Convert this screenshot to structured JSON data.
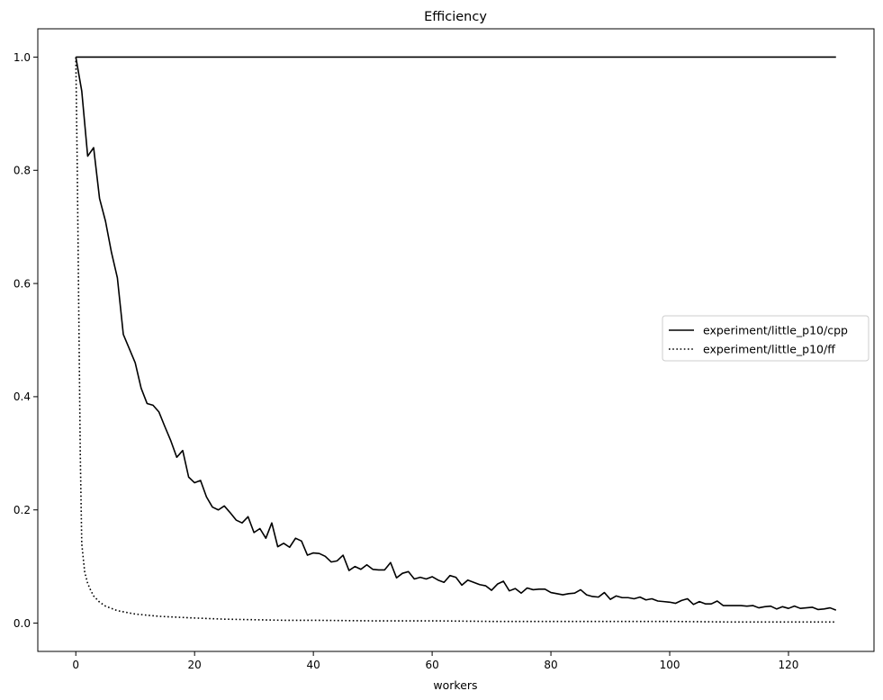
{
  "chart_data": {
    "type": "line",
    "title": "Efficiency",
    "xlabel": "workers",
    "ylabel": "",
    "xlim": [
      -6.4,
      134.4
    ],
    "ylim": [
      -0.05,
      1.05
    ],
    "xticks": [
      0,
      20,
      40,
      60,
      80,
      100,
      120
    ],
    "yticks": [
      0.0,
      0.2,
      0.4,
      0.6,
      0.8,
      1.0
    ],
    "xtick_labels": [
      "0",
      "20",
      "40",
      "60",
      "80",
      "100",
      "120"
    ],
    "ytick_labels": [
      "0.0",
      "0.2",
      "0.4",
      "0.6",
      "0.8",
      "1.0"
    ],
    "grid": false,
    "legend_position": "center-right",
    "line_color": "#000000",
    "series": [
      {
        "name": "experiment/little_p10/cpp",
        "style": "solid",
        "x": [
          0,
          1,
          2,
          3,
          4,
          5,
          6,
          7,
          8,
          9,
          10,
          11,
          12,
          13,
          14,
          15,
          16,
          17,
          18,
          19,
          20,
          21,
          22,
          23,
          24,
          25,
          26,
          27,
          28,
          29,
          30,
          31,
          32,
          33,
          34,
          35,
          36,
          37,
          38,
          39,
          40,
          41,
          42,
          43,
          44,
          45,
          46,
          47,
          48,
          49,
          50,
          51,
          52,
          53,
          54,
          55,
          56,
          57,
          58,
          59,
          60,
          61,
          62,
          63,
          64,
          65,
          66,
          67,
          68,
          69,
          70,
          71,
          72,
          73,
          74,
          75,
          76,
          77,
          78,
          79,
          80,
          81,
          82,
          83,
          84,
          85,
          86,
          87,
          88,
          89,
          90,
          91,
          92,
          93,
          94,
          95,
          96,
          97,
          98,
          99,
          100,
          101,
          102,
          103,
          104,
          105,
          106,
          107,
          108,
          109,
          110,
          111,
          112,
          113,
          114,
          115,
          116,
          117,
          118,
          119,
          120,
          121,
          122,
          123,
          124,
          125,
          126,
          127,
          128
        ],
        "values": [
          1.0,
          0.94,
          0.825,
          0.84,
          0.75,
          0.71,
          0.655,
          0.61,
          0.51,
          0.485,
          0.46,
          0.415,
          0.388,
          0.385,
          0.373,
          0.347,
          0.322,
          0.293,
          0.305,
          0.258,
          0.248,
          0.252,
          0.223,
          0.205,
          0.2,
          0.207,
          0.195,
          0.182,
          0.177,
          0.188,
          0.16,
          0.167,
          0.15,
          0.177,
          0.135,
          0.141,
          0.134,
          0.15,
          0.145,
          0.12,
          0.124,
          0.123,
          0.118,
          0.108,
          0.11,
          0.12,
          0.093,
          0.1,
          0.095,
          0.103,
          0.095,
          0.094,
          0.094,
          0.107,
          0.08,
          0.088,
          0.091,
          0.078,
          0.081,
          0.078,
          0.082,
          0.076,
          0.072,
          0.084,
          0.081,
          0.067,
          0.076,
          0.072,
          0.068,
          0.066,
          0.058,
          0.069,
          0.074,
          0.057,
          0.061,
          0.053,
          0.062,
          0.059,
          0.06,
          0.06,
          0.054,
          0.052,
          0.05,
          0.052,
          0.053,
          0.059,
          0.05,
          0.047,
          0.046,
          0.054,
          0.042,
          0.048,
          0.045,
          0.045,
          0.043,
          0.046,
          0.041,
          0.043,
          0.039,
          0.038,
          0.037,
          0.035,
          0.04,
          0.043,
          0.033,
          0.038,
          0.034,
          0.034,
          0.039,
          0.031,
          0.031,
          0.031,
          0.031,
          0.03,
          0.031,
          0.027,
          0.029,
          0.03,
          0.025,
          0.029,
          0.026,
          0.03,
          0.026,
          0.027,
          0.028,
          0.024,
          0.025,
          0.027,
          0.023
        ]
      },
      {
        "name": "experiment/little_p10/ff",
        "style": "dotted",
        "x": [
          0,
          0.25,
          0.5,
          0.75,
          1,
          1.5,
          2,
          2.5,
          3,
          4,
          5,
          6,
          7,
          8,
          9,
          10,
          12,
          14,
          16,
          18,
          20,
          25,
          30,
          35,
          40,
          50,
          60,
          70,
          80,
          90,
          100,
          110,
          120,
          128
        ],
        "values": [
          1.0,
          0.8,
          0.55,
          0.3,
          0.14,
          0.09,
          0.07,
          0.058,
          0.048,
          0.037,
          0.03,
          0.026,
          0.022,
          0.02,
          0.018,
          0.016,
          0.014,
          0.012,
          0.011,
          0.01,
          0.009,
          0.007,
          0.006,
          0.005,
          0.005,
          0.004,
          0.004,
          0.003,
          0.003,
          0.003,
          0.003,
          0.002,
          0.002,
          0.002
        ]
      },
      {
        "name": "",
        "style": "solid",
        "x": [
          0,
          128
        ],
        "values": [
          1.0,
          1.0
        ]
      }
    ]
  }
}
